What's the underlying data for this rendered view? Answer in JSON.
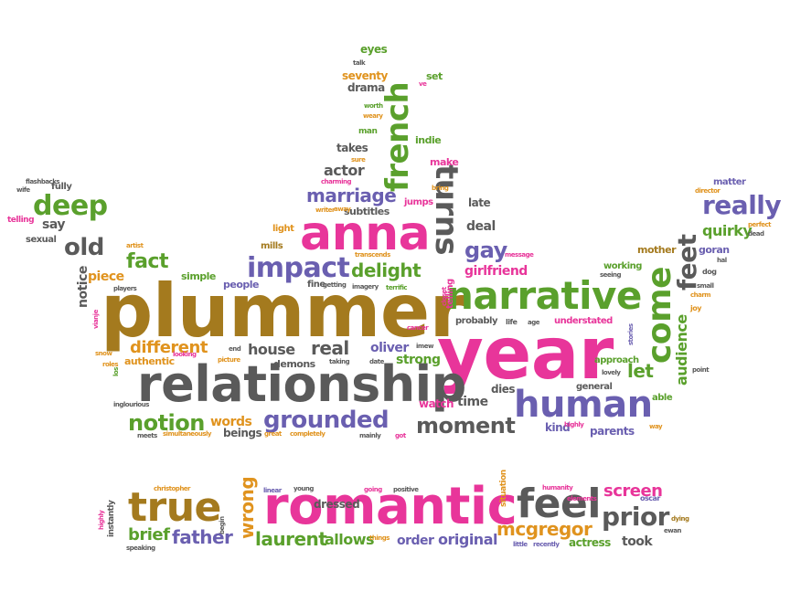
{
  "palette": {
    "green": "#5aa02c",
    "pink": "#e8359a",
    "brown": "#a47a1e",
    "gray": "#5a5a5a",
    "purple": "#6a5fb0",
    "orange": "#e0931e",
    "teal": "#2a9a8a"
  },
  "words": [
    {
      "text": "plummer",
      "color": "brown"
    },
    {
      "text": "year",
      "color": "pink"
    },
    {
      "text": "relationship",
      "color": "gray"
    },
    {
      "text": "romantic",
      "color": "pink"
    },
    {
      "text": "anna",
      "color": "pink"
    },
    {
      "text": "narrative",
      "color": "green"
    },
    {
      "text": "human",
      "color": "purple"
    },
    {
      "text": "true",
      "color": "brown"
    },
    {
      "text": "feel",
      "color": "gray"
    },
    {
      "text": "impact",
      "color": "purple"
    },
    {
      "text": "french",
      "color": "green"
    },
    {
      "text": "turns",
      "color": "gray"
    },
    {
      "text": "come",
      "color": "green"
    },
    {
      "text": "grounded",
      "color": "purple"
    },
    {
      "text": "moment",
      "color": "gray"
    },
    {
      "text": "notion",
      "color": "green"
    },
    {
      "text": "deep",
      "color": "green"
    },
    {
      "text": "really",
      "color": "purple"
    },
    {
      "text": "feet",
      "color": "gray"
    },
    {
      "text": "prior",
      "color": "gray"
    },
    {
      "text": "marriage",
      "color": "purple"
    },
    {
      "text": "delight",
      "color": "green"
    },
    {
      "text": "old",
      "color": "gray"
    },
    {
      "text": "gay",
      "color": "purple"
    },
    {
      "text": "fact",
      "color": "green"
    },
    {
      "text": "real",
      "color": "gray"
    },
    {
      "text": "different",
      "color": "orange"
    },
    {
      "text": "father",
      "color": "purple"
    },
    {
      "text": "laurent",
      "color": "green"
    },
    {
      "text": "mcgregor",
      "color": "orange"
    },
    {
      "text": "brief",
      "color": "green"
    },
    {
      "text": "wrong",
      "color": "orange"
    },
    {
      "text": "screen",
      "color": "pink"
    },
    {
      "text": "actor",
      "color": "gray"
    },
    {
      "text": "quirky",
      "color": "green"
    },
    {
      "text": "let",
      "color": "green"
    },
    {
      "text": "audience",
      "color": "green"
    },
    {
      "text": "allows",
      "color": "green"
    },
    {
      "text": "original",
      "color": "purple"
    },
    {
      "text": "order",
      "color": "purple"
    },
    {
      "text": "words",
      "color": "orange"
    },
    {
      "text": "oliver",
      "color": "purple"
    },
    {
      "text": "strong",
      "color": "green"
    },
    {
      "text": "house",
      "color": "gray"
    },
    {
      "text": "girlfriend",
      "color": "pink"
    },
    {
      "text": "took",
      "color": "gray"
    },
    {
      "text": "dressed",
      "color": "gray"
    },
    {
      "text": "deal",
      "color": "gray"
    },
    {
      "text": "say",
      "color": "gray"
    },
    {
      "text": "piece",
      "color": "orange"
    },
    {
      "text": "kind",
      "color": "purple"
    },
    {
      "text": "parents",
      "color": "purple"
    },
    {
      "text": "time",
      "color": "gray"
    },
    {
      "text": "watch",
      "color": "pink"
    },
    {
      "text": "beings",
      "color": "gray"
    },
    {
      "text": "actress",
      "color": "green"
    },
    {
      "text": "dies",
      "color": "gray"
    },
    {
      "text": "late",
      "color": "gray"
    },
    {
      "text": "subtitles",
      "color": "gray"
    },
    {
      "text": "takes",
      "color": "gray"
    },
    {
      "text": "drama",
      "color": "gray"
    },
    {
      "text": "seventy",
      "color": "orange"
    },
    {
      "text": "eyes",
      "color": "green"
    },
    {
      "text": "indie",
      "color": "green"
    },
    {
      "text": "make",
      "color": "pink"
    },
    {
      "text": "notice",
      "color": "gray"
    },
    {
      "text": "people",
      "color": "purple"
    },
    {
      "text": "simple",
      "color": "green"
    },
    {
      "text": "mother",
      "color": "brown"
    },
    {
      "text": "goran",
      "color": "purple"
    },
    {
      "text": "working",
      "color": "green"
    },
    {
      "text": "approach",
      "color": "green"
    },
    {
      "text": "general",
      "color": "gray"
    },
    {
      "text": "understated",
      "color": "pink"
    },
    {
      "text": "probably",
      "color": "gray"
    },
    {
      "text": "demons",
      "color": "gray"
    },
    {
      "text": "authentic",
      "color": "orange"
    },
    {
      "text": "light",
      "color": "orange"
    },
    {
      "text": "mills",
      "color": "brown"
    },
    {
      "text": "fine",
      "color": "gray"
    },
    {
      "text": "jumps",
      "color": "pink"
    },
    {
      "text": "matter",
      "color": "purple"
    },
    {
      "text": "fully",
      "color": "gray"
    },
    {
      "text": "sexual",
      "color": "gray"
    },
    {
      "text": "able",
      "color": "green"
    },
    {
      "text": "set",
      "color": "green"
    },
    {
      "text": "man",
      "color": "green"
    },
    {
      "text": "christopher",
      "color": "orange"
    },
    {
      "text": "linear",
      "color": "purple"
    },
    {
      "text": "young",
      "color": "gray"
    },
    {
      "text": "going",
      "color": "pink"
    },
    {
      "text": "positive",
      "color": "gray"
    },
    {
      "text": "humanity",
      "color": "pink"
    },
    {
      "text": "oscar",
      "color": "purple"
    },
    {
      "text": "elements",
      "color": "pink"
    },
    {
      "text": "dying",
      "color": "brown"
    },
    {
      "text": "ewan",
      "color": "gray"
    },
    {
      "text": "little",
      "color": "purple"
    },
    {
      "text": "recently",
      "color": "purple"
    },
    {
      "text": "speaking",
      "color": "gray"
    },
    {
      "text": "things",
      "color": "orange"
    },
    {
      "text": "situation",
      "color": "orange"
    },
    {
      "text": "instantly",
      "color": "gray"
    },
    {
      "text": "begin",
      "color": "gray"
    },
    {
      "text": "completely",
      "color": "orange"
    },
    {
      "text": "great",
      "color": "orange"
    },
    {
      "text": "mainly",
      "color": "gray"
    },
    {
      "text": "got",
      "color": "pink"
    },
    {
      "text": "meets",
      "color": "gray"
    },
    {
      "text": "simultaneously",
      "color": "orange"
    },
    {
      "text": "inglourious",
      "color": "gray"
    },
    {
      "text": "picture",
      "color": "orange"
    },
    {
      "text": "taking",
      "color": "gray"
    },
    {
      "text": "date",
      "color": "gray"
    },
    {
      "text": "imew",
      "color": "gray"
    },
    {
      "text": "end",
      "color": "gray"
    },
    {
      "text": "cancer",
      "color": "pink"
    },
    {
      "text": "life",
      "color": "gray"
    },
    {
      "text": "age",
      "color": "gray"
    },
    {
      "text": "stories",
      "color": "purple"
    },
    {
      "text": "lovely",
      "color": "gray"
    },
    {
      "text": "point",
      "color": "gray"
    },
    {
      "text": "highly",
      "color": "pink"
    },
    {
      "text": "way",
      "color": "orange"
    },
    {
      "text": "joy",
      "color": "orange"
    },
    {
      "text": "small",
      "color": "gray"
    },
    {
      "text": "charm",
      "color": "orange"
    },
    {
      "text": "dog",
      "color": "gray"
    },
    {
      "text": "hal",
      "color": "gray"
    },
    {
      "text": "perfect",
      "color": "orange"
    },
    {
      "text": "dead",
      "color": "gray"
    },
    {
      "text": "director",
      "color": "orange"
    },
    {
      "text": "seeing",
      "color": "gray"
    },
    {
      "text": "message",
      "color": "pink"
    },
    {
      "text": "terrific",
      "color": "green"
    },
    {
      "text": "imagery",
      "color": "gray"
    },
    {
      "text": "getting",
      "color": "gray"
    },
    {
      "text": "transcends",
      "color": "orange"
    },
    {
      "text": "story",
      "color": "purple"
    },
    {
      "text": "head",
      "color": "brown"
    },
    {
      "text": "sadness",
      "color": "pink"
    },
    {
      "text": "closet",
      "color": "pink"
    },
    {
      "text": "artist",
      "color": "orange"
    },
    {
      "text": "players",
      "color": "gray"
    },
    {
      "text": "vianje",
      "color": "pink"
    },
    {
      "text": "snow",
      "color": "orange"
    },
    {
      "text": "looking",
      "color": "pink"
    },
    {
      "text": "roles",
      "color": "orange"
    },
    {
      "text": "los",
      "color": "green"
    },
    {
      "text": "flashbacks",
      "color": "gray"
    },
    {
      "text": "wife",
      "color": "gray"
    },
    {
      "text": "telling",
      "color": "pink"
    },
    {
      "text": "charming",
      "color": "pink"
    },
    {
      "text": "writer",
      "color": "orange"
    },
    {
      "text": "away",
      "color": "orange"
    },
    {
      "text": "world",
      "color": "gray"
    },
    {
      "text": "bring",
      "color": "orange"
    },
    {
      "text": "sure",
      "color": "orange"
    },
    {
      "text": "worth",
      "color": "green"
    },
    {
      "text": "weary",
      "color": "orange"
    },
    {
      "text": "talk",
      "color": "gray"
    },
    {
      "text": "ve",
      "color": "pink"
    }
  ]
}
